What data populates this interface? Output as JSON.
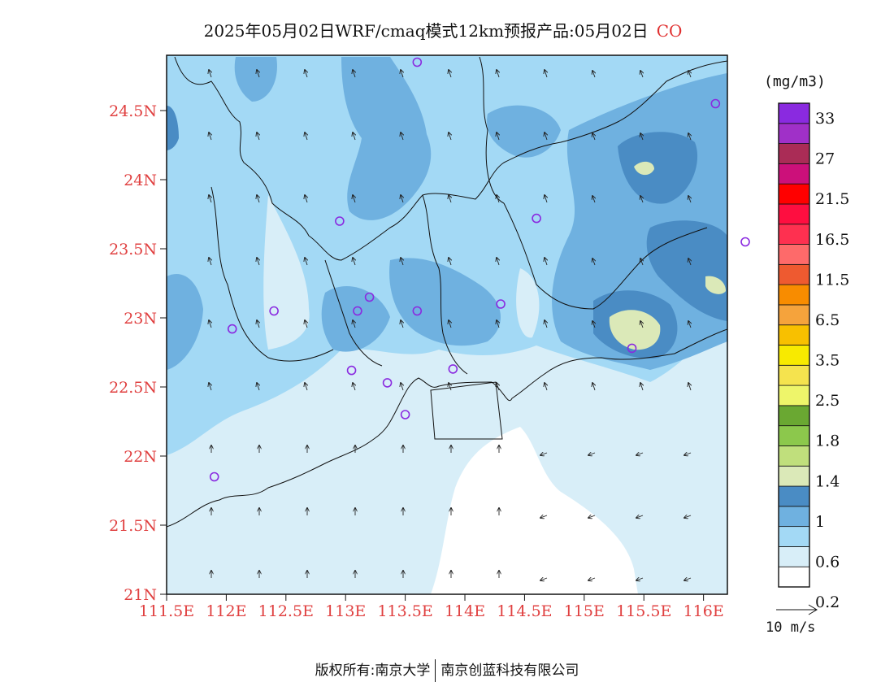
{
  "title": {
    "main": "2025年05月02日WRF/cmaq模式12km预报产品:05月02日",
    "species": "CO"
  },
  "map": {
    "lat_labels": [
      "24.5N",
      "24N",
      "23.5N",
      "23N",
      "22.5N",
      "22N",
      "21.5N",
      "21N"
    ],
    "lat_values": [
      24.5,
      24.0,
      23.5,
      23.0,
      22.5,
      22.0,
      21.5,
      21.0
    ],
    "lon_labels": [
      "111.5E",
      "112E",
      "112.5E",
      "113E",
      "113.5E",
      "114E",
      "114.5E",
      "115E",
      "115.5E",
      "116E"
    ],
    "lon_values": [
      111.5,
      112.0,
      112.5,
      113.0,
      113.5,
      114.0,
      114.5,
      115.0,
      115.5,
      116.0
    ],
    "lon_range": [
      111.5,
      116.2
    ],
    "lat_range": [
      21.0,
      24.9
    ],
    "label_color": "#e04040",
    "stations": [
      [
        113.6,
        24.85
      ],
      [
        116.1,
        24.55
      ],
      [
        112.95,
        23.7
      ],
      [
        114.6,
        23.72
      ],
      [
        116.35,
        23.55
      ],
      [
        113.2,
        23.15
      ],
      [
        112.05,
        22.92
      ],
      [
        112.4,
        23.05
      ],
      [
        113.1,
        23.05
      ],
      [
        113.6,
        23.05
      ],
      [
        114.3,
        23.1
      ],
      [
        115.4,
        22.78
      ],
      [
        113.05,
        22.62
      ],
      [
        113.35,
        22.53
      ],
      [
        113.9,
        22.63
      ],
      [
        113.5,
        22.3
      ],
      [
        111.9,
        21.85
      ]
    ]
  },
  "legend": {
    "unit": "(mg/m3)",
    "labels": [
      "33",
      "27",
      "21.5",
      "16.5",
      "11.5",
      "6.5",
      "3.5",
      "2.5",
      "1.8",
      "1.4",
      "1",
      "0.6",
      "0.2"
    ],
    "colors": [
      "#ffffff",
      "#d8eef8",
      "#a3d9f5",
      "#6fb1e0",
      "#4a8cc4",
      "#dbe9b8",
      "#c0df7c",
      "#8cc84c",
      "#6aa832",
      "#eef56a",
      "#f5e34e",
      "#f8ea00",
      "#f8c000",
      "#f5a33c",
      "#f88c00",
      "#ee5a30",
      "#fe6a6a",
      "#fe3050",
      "#fe0e40",
      "#ff0000",
      "#cc107a",
      "#aa2c56",
      "#a030c8",
      "#8a2ae0"
    ]
  },
  "wind_reference": {
    "label": "10 m/s"
  },
  "footer": {
    "left": "版权所有:南京大学",
    "right": "南京创蓝科技有限公司"
  }
}
